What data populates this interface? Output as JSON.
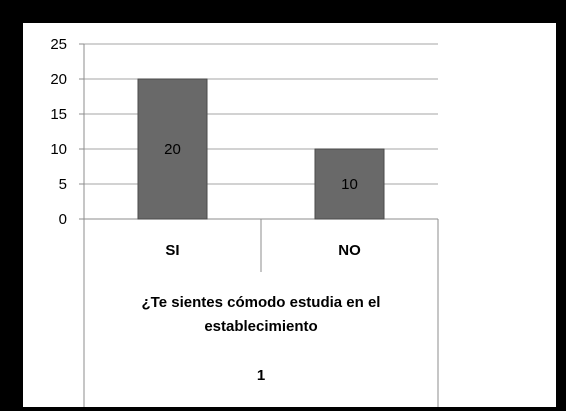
{
  "chart_data": {
    "type": "bar",
    "categories": [
      "SI",
      "NO"
    ],
    "values": [
      20,
      10
    ],
    "data_labels": [
      "20",
      "10"
    ],
    "group_label_lines": [
      "¿Te sientes cómodo estudia en el",
      "establecimiento"
    ],
    "series_label": "1",
    "ylim": [
      0,
      25
    ],
    "yticks": [
      0,
      5,
      10,
      15,
      20,
      25
    ],
    "grid": true,
    "legend": "none",
    "colors": {
      "bar": "#696969",
      "bar_edge": "#4a4a4a",
      "grid": "#a6a6a6",
      "axis": "#8c8c8c",
      "frame": "#000000",
      "plot_bg": "#ffffff"
    }
  }
}
